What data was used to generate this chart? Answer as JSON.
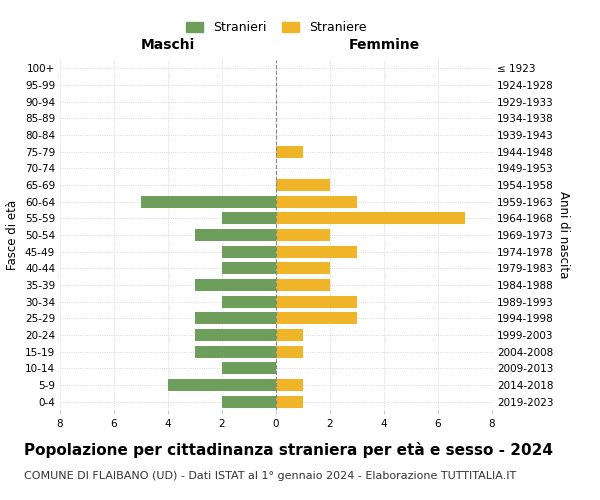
{
  "age_groups": [
    "0-4",
    "5-9",
    "10-14",
    "15-19",
    "20-24",
    "25-29",
    "30-34",
    "35-39",
    "40-44",
    "45-49",
    "50-54",
    "55-59",
    "60-64",
    "65-69",
    "70-74",
    "75-79",
    "80-84",
    "85-89",
    "90-94",
    "95-99",
    "100+"
  ],
  "birth_years": [
    "2019-2023",
    "2014-2018",
    "2009-2013",
    "2004-2008",
    "1999-2003",
    "1994-1998",
    "1989-1993",
    "1984-1988",
    "1979-1983",
    "1974-1978",
    "1969-1973",
    "1964-1968",
    "1959-1963",
    "1954-1958",
    "1949-1953",
    "1944-1948",
    "1939-1943",
    "1934-1938",
    "1929-1933",
    "1924-1928",
    "≤ 1923"
  ],
  "males": [
    2,
    4,
    2,
    3,
    3,
    3,
    2,
    3,
    2,
    2,
    3,
    2,
    5,
    0,
    0,
    0,
    0,
    0,
    0,
    0,
    0
  ],
  "females": [
    1,
    1,
    0,
    1,
    1,
    3,
    3,
    2,
    2,
    3,
    2,
    7,
    3,
    2,
    0,
    1,
    0,
    0,
    0,
    0,
    0
  ],
  "male_color": "#6d9e5b",
  "female_color": "#f0b429",
  "background_color": "#ffffff",
  "grid_color": "#cccccc",
  "center_line_color": "#888888",
  "title": "Popolazione per cittadinanza straniera per età e sesso - 2024",
  "subtitle": "COMUNE DI FLAIBANO (UD) - Dati ISTAT al 1° gennaio 2024 - Elaborazione TUTTITALIA.IT",
  "xlabel_left": "Maschi",
  "xlabel_right": "Femmine",
  "ylabel_left": "Fasce di età",
  "ylabel_right": "Anni di nascita",
  "legend_male": "Stranieri",
  "legend_female": "Straniere",
  "xlim": 8,
  "title_fontsize": 11,
  "subtitle_fontsize": 8,
  "header_fontsize": 10,
  "axis_label_fontsize": 8.5,
  "tick_fontsize": 7.5,
  "legend_fontsize": 9
}
